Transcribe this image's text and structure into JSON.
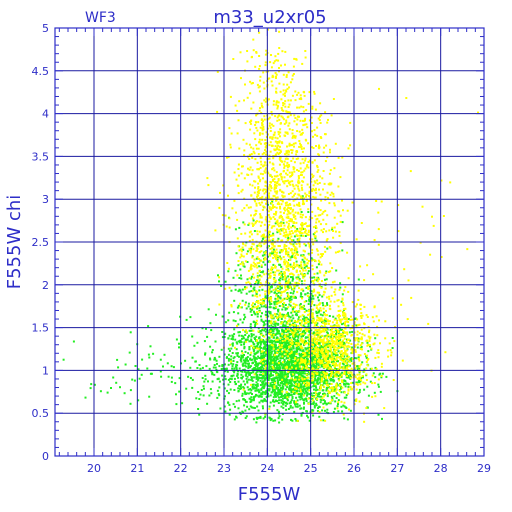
{
  "chart_data": {
    "type": "scatter",
    "title": "m33_u2xr05",
    "panel_label": "WF3",
    "xlabel": "F555W",
    "ylabel": "F555W chi",
    "xlim": [
      19.1,
      29
    ],
    "ylim": [
      0,
      5
    ],
    "x_ticks": [
      "20",
      "21",
      "22",
      "23",
      "24",
      "25",
      "26",
      "27",
      "28",
      "29"
    ],
    "y_ticks": [
      "0",
      "0.5",
      "1",
      "1.5",
      "2",
      "2.5",
      "3",
      "3.5",
      "4",
      "4.5",
      "5"
    ],
    "grid": true,
    "series": [
      {
        "color": "#22ee22",
        "density_summary": [
          {
            "x_mean": 24.5,
            "x_sd": 0.75,
            "y_mean": 1.05,
            "y_sd": 0.28,
            "count": 2600
          },
          {
            "x_mean": 24.3,
            "x_sd": 0.6,
            "y_mean": 1.8,
            "y_sd": 0.45,
            "count": 700
          },
          {
            "x_mean": 22.0,
            "x_sd": 1.1,
            "y_mean": 0.95,
            "y_sd": 0.25,
            "count": 120
          }
        ]
      },
      {
        "color": "#ffff00",
        "density_summary": [
          {
            "x_mean": 24.4,
            "x_sd": 0.6,
            "y_mean": 2.6,
            "y_sd": 0.75,
            "count": 1500
          },
          {
            "x_mean": 24.2,
            "x_sd": 0.45,
            "y_mean": 3.9,
            "y_sd": 0.5,
            "count": 350
          },
          {
            "x_mean": 25.4,
            "x_sd": 0.55,
            "y_mean": 1.25,
            "y_sd": 0.3,
            "count": 900
          },
          {
            "x_mean": 26.8,
            "x_sd": 1.0,
            "y_mean": 2.5,
            "y_sd": 0.7,
            "count": 40
          }
        ]
      }
    ]
  }
}
